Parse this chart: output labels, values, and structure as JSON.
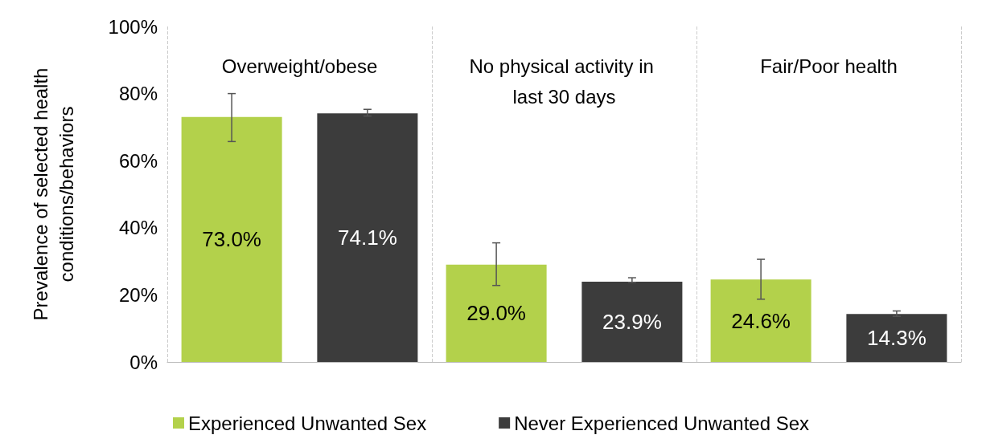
{
  "chart_data": {
    "type": "bar",
    "ylabel": "Prevalence of selected health conditions/behaviors",
    "categories": [
      "Overweight/obese",
      "No physical activity in last 30 days",
      "Fair/Poor health"
    ],
    "series": [
      {
        "name": "Experienced Unwanted Sex",
        "color": "#b3d14b",
        "values": [
          73.0,
          29.0,
          24.6
        ],
        "value_labels": [
          "73.0%",
          "29.0%",
          "24.6%"
        ],
        "errors": [
          [
            65.7,
            80.0
          ],
          [
            22.8,
            35.5
          ],
          [
            18.7,
            30.6
          ]
        ]
      },
      {
        "name": "Never Experienced Unwanted Sex",
        "color": "#3c3c3c",
        "values": [
          74.1,
          23.9,
          14.3
        ],
        "value_labels": [
          "74.1%",
          "23.9%",
          "14.3%"
        ],
        "errors": [
          [
            73.3,
            75.3
          ],
          [
            23.7,
            25.1
          ],
          [
            13.6,
            15.2
          ]
        ]
      }
    ],
    "ylim": [
      0,
      100
    ],
    "yticks": [
      {
        "value": 0,
        "label": "0%"
      },
      {
        "value": 20,
        "label": "20%"
      },
      {
        "value": 40,
        "label": "40%"
      },
      {
        "value": 60,
        "label": "60%"
      },
      {
        "value": 80,
        "label": "80%"
      },
      {
        "value": 100,
        "label": "100%"
      }
    ],
    "grid": "x",
    "legend": "bottom"
  }
}
